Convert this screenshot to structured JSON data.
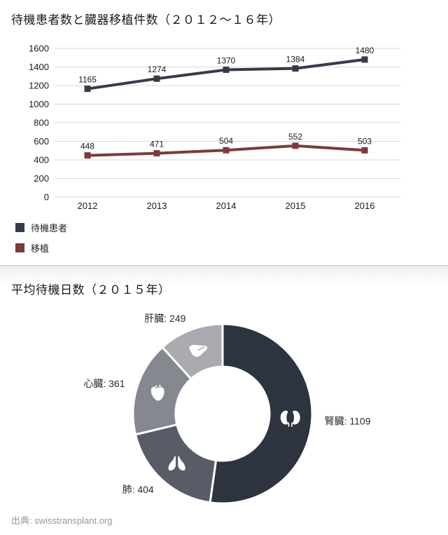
{
  "footer": {
    "source": "出典: swisstransplant.org"
  },
  "chart_data": [
    {
      "type": "line",
      "title": "待機患者数と臓器移植件数（２０１２～１６年）",
      "categories": [
        "2012",
        "2013",
        "2014",
        "2015",
        "2016"
      ],
      "series": [
        {
          "name": "待機患者",
          "values": [
            1165,
            1274,
            1370,
            1384,
            1480
          ],
          "color": "#353c48"
        },
        {
          "name": "移植",
          "values": [
            448,
            471,
            504,
            552,
            503
          ],
          "color": "#7d3a3d"
        }
      ],
      "xlabel": "",
      "ylabel": "",
      "ylim": [
        0,
        1600
      ],
      "ytick_step": 200,
      "grid": true,
      "marker": "square",
      "legend_position": "bottom-left",
      "grid_color": "#d9d9d9",
      "label_color": "#1a1a1a"
    },
    {
      "type": "pie",
      "donut": true,
      "title": "平均待機日数（２０１５年）",
      "label_format": "label: value",
      "segments": [
        {
          "label": "腎臓",
          "value": 1109,
          "color": "#2d333f",
          "icon": "kidney-icon"
        },
        {
          "label": "肺",
          "value": 404,
          "color": "#575c66",
          "icon": "lungs-icon"
        },
        {
          "label": "心臓",
          "value": 361,
          "color": "#85888f",
          "icon": "heart-icon"
        },
        {
          "label": "肝臓",
          "value": 249,
          "color": "#a9abb0",
          "icon": "liver-icon"
        }
      ],
      "label_text_color": "#2b2b2b"
    }
  ]
}
